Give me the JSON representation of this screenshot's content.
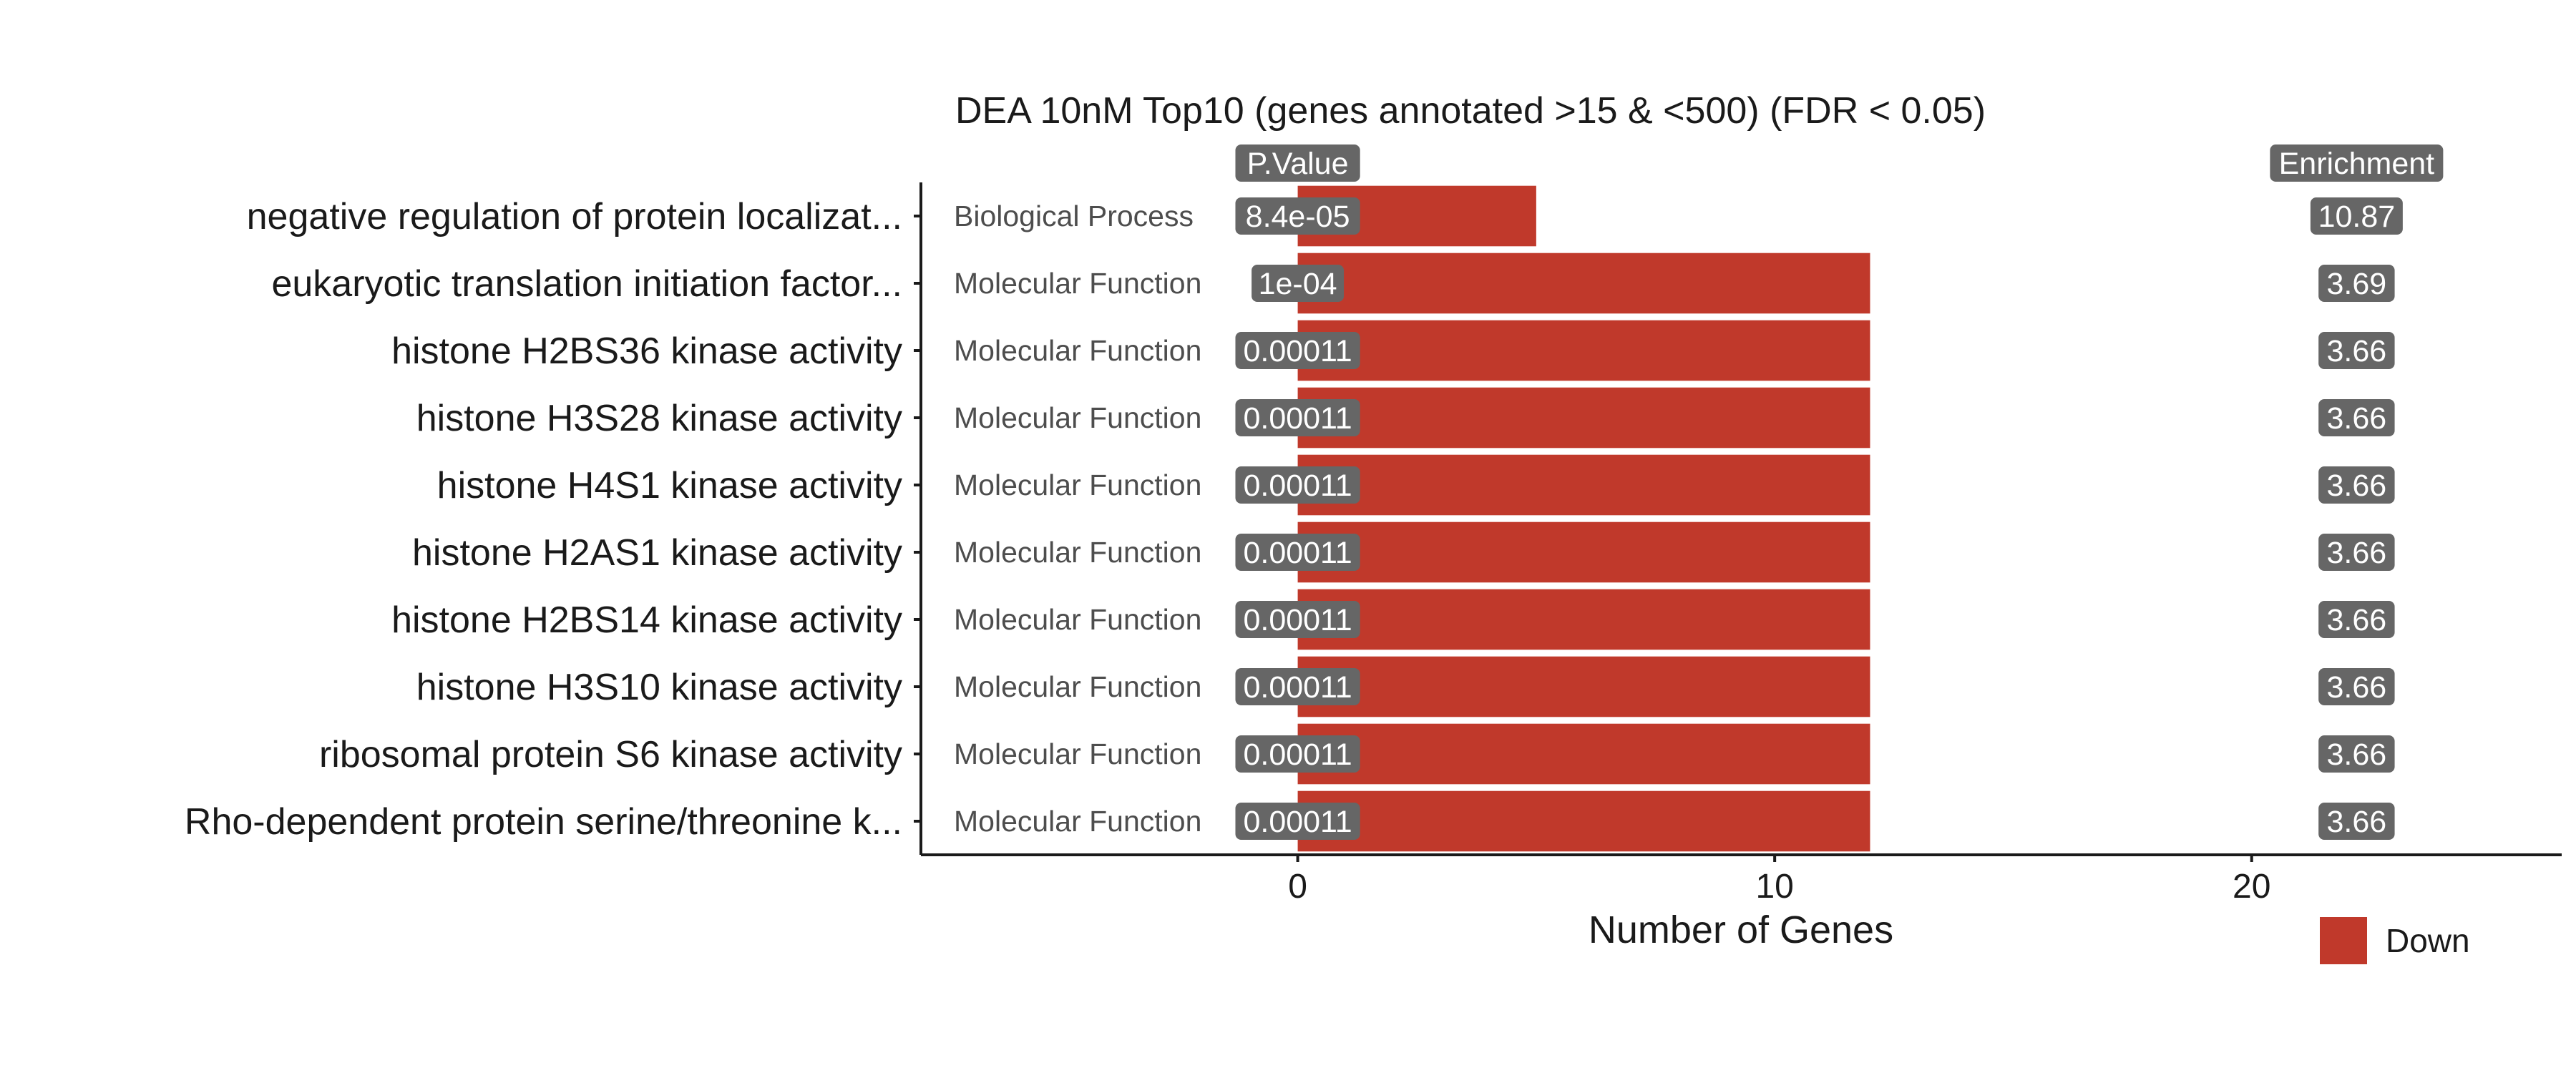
{
  "chart_data": {
    "type": "bar",
    "title": "DEA 10nM Top10 (genes annotated >15 & <500) (FDR < 0.05)",
    "xlabel": "Number of Genes",
    "ylabel": "",
    "xlim": [
      -7.9,
      26.5
    ],
    "x_ticks": [
      0,
      10,
      20
    ],
    "grid": false,
    "bar_color": "#c0392b",
    "badge_color": "#666666",
    "pvalue_header": "P.Value",
    "enrichment_header": "Enrichment",
    "legend": {
      "position": "bottom-right",
      "entries": [
        {
          "label": "Down",
          "color": "#c0392b"
        }
      ]
    },
    "rows": [
      {
        "term": "negative regulation of protein localizat...",
        "category": "Biological Process",
        "genes": 5,
        "pvalue": "8.4e-05",
        "enrichment": "10.87"
      },
      {
        "term": "eukaryotic translation initiation factor...",
        "category": "Molecular Function",
        "genes": 12,
        "pvalue": "1e-04",
        "enrichment": "3.69"
      },
      {
        "term": "histone H2BS36 kinase activity",
        "category": "Molecular Function",
        "genes": 12,
        "pvalue": "0.00011",
        "enrichment": "3.66"
      },
      {
        "term": "histone H3S28 kinase activity",
        "category": "Molecular Function",
        "genes": 12,
        "pvalue": "0.00011",
        "enrichment": "3.66"
      },
      {
        "term": "histone H4S1 kinase activity",
        "category": "Molecular Function",
        "genes": 12,
        "pvalue": "0.00011",
        "enrichment": "3.66"
      },
      {
        "term": "histone H2AS1 kinase activity",
        "category": "Molecular Function",
        "genes": 12,
        "pvalue": "0.00011",
        "enrichment": "3.66"
      },
      {
        "term": "histone H2BS14 kinase activity",
        "category": "Molecular Function",
        "genes": 12,
        "pvalue": "0.00011",
        "enrichment": "3.66"
      },
      {
        "term": "histone H3S10 kinase activity",
        "category": "Molecular Function",
        "genes": 12,
        "pvalue": "0.00011",
        "enrichment": "3.66"
      },
      {
        "term": "ribosomal protein S6 kinase activity",
        "category": "Molecular Function",
        "genes": 12,
        "pvalue": "0.00011",
        "enrichment": "3.66"
      },
      {
        "term": "Rho-dependent protein serine/threonine k...",
        "category": "Molecular Function",
        "genes": 12,
        "pvalue": "0.00011",
        "enrichment": "3.66"
      }
    ]
  }
}
